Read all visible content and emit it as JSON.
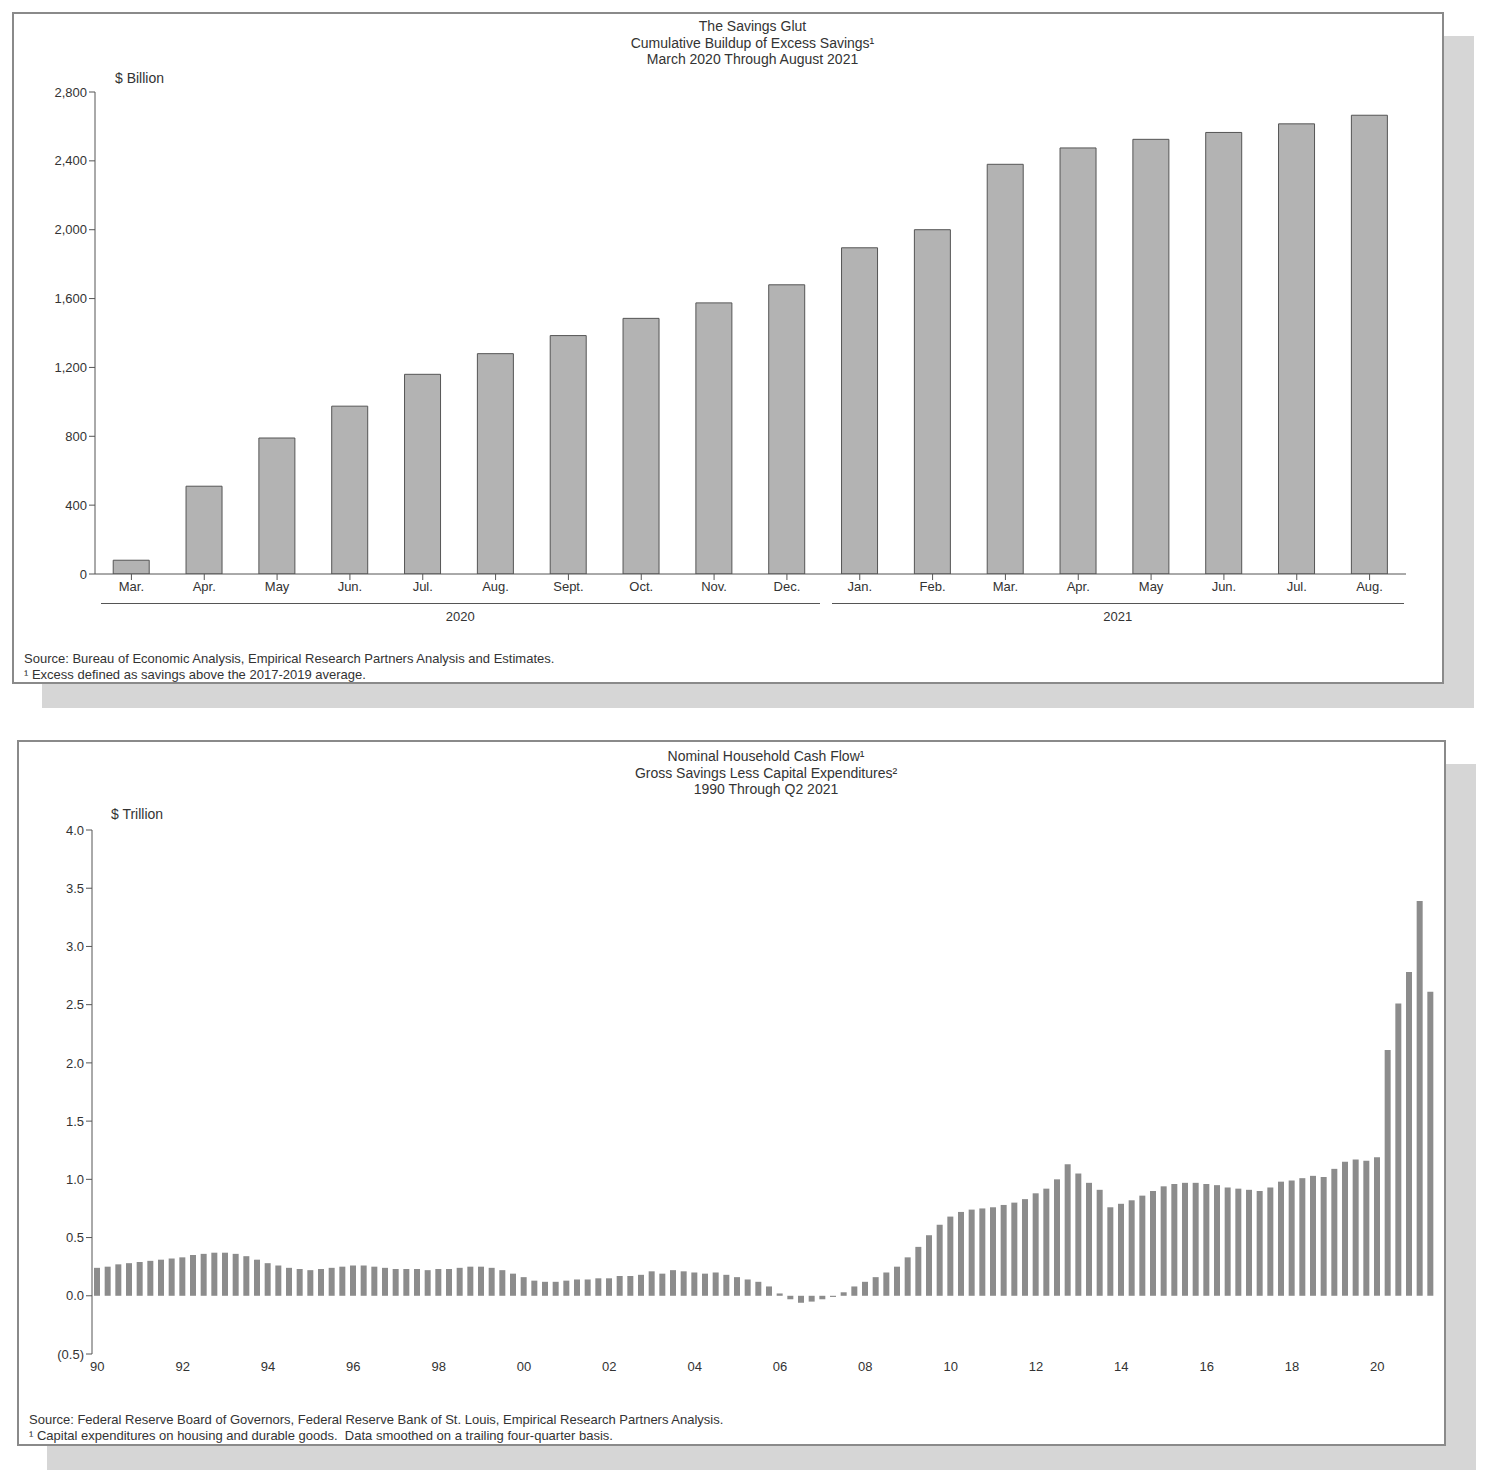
{
  "chart_data": [
    {
      "type": "bar",
      "title": "The Savings Glut",
      "subtitle": [
        "Cumulative Buildup of Excess Savings¹",
        "March 2020 Through August 2021"
      ],
      "y_label": "$ Billion",
      "categories": [
        "Mar.",
        "Apr.",
        "May",
        "Jun.",
        "Jul.",
        "Aug.",
        "Sept.",
        "Oct.",
        "Nov.",
        "Dec.",
        "Jan.",
        "Feb.",
        "Mar.",
        "Apr.",
        "May",
        "Jun.",
        "Jul.",
        "Aug."
      ],
      "values": [
        80,
        510,
        790,
        975,
        1160,
        1280,
        1385,
        1485,
        1575,
        1680,
        1895,
        2000,
        2380,
        2475,
        2525,
        2565,
        2615,
        2665
      ],
      "groups": [
        {
          "label": "2020",
          "first": 0,
          "last": 9
        },
        {
          "label": "2021",
          "first": 10,
          "last": 17
        }
      ],
      "color": "#b3b3b3",
      "ylim": [
        0,
        2800
      ],
      "yticks": [
        0,
        400,
        800,
        {
          "value": 1200,
          "label": "1,200"
        },
        {
          "value": 1600,
          "label": "1,600"
        },
        {
          "value": 2000,
          "label": "2,000"
        },
        {
          "value": 2400,
          "label": "2,400"
        },
        {
          "value": 2800,
          "label": "2,800"
        }
      ],
      "grid": false,
      "source": "Source: Bureau of Economic Analysis, Empirical Research Partners Analysis and Estimates.",
      "footnote": "¹ Excess defined as savings above the 2017-2019 average."
    },
    {
      "type": "bar",
      "title": "Nominal Household Cash Flow¹",
      "subtitle": [
        "Gross Savings Less Capital Expenditures²",
        "1990 Through Q2 2021"
      ],
      "y_label": "$ Trillion",
      "categories": [
        "90",
        null,
        null,
        null,
        null,
        null,
        null,
        null,
        "92",
        null,
        null,
        null,
        null,
        null,
        null,
        null,
        "94",
        null,
        null,
        null,
        null,
        null,
        null,
        null,
        "96",
        null,
        null,
        null,
        null,
        null,
        null,
        null,
        "98",
        null,
        null,
        null,
        null,
        null,
        null,
        null,
        "00",
        null,
        null,
        null,
        null,
        null,
        null,
        null,
        "02",
        null,
        null,
        null,
        null,
        null,
        null,
        null,
        "04",
        null,
        null,
        null,
        null,
        null,
        null,
        null,
        "06",
        null,
        null,
        null,
        null,
        null,
        null,
        null,
        "08",
        null,
        null,
        null,
        null,
        null,
        null,
        null,
        "10",
        null,
        null,
        null,
        null,
        null,
        null,
        null,
        "12",
        null,
        null,
        null,
        null,
        null,
        null,
        null,
        "14",
        null,
        null,
        null,
        null,
        null,
        null,
        null,
        "16",
        null,
        null,
        null,
        null,
        null,
        null,
        null,
        "18",
        null,
        null,
        null,
        null,
        null,
        null,
        null,
        "20",
        null,
        null,
        null,
        null,
        null
      ],
      "values": [
        0.24,
        0.25,
        0.27,
        0.28,
        0.29,
        0.3,
        0.31,
        0.32,
        0.33,
        0.35,
        0.36,
        0.37,
        0.37,
        0.36,
        0.34,
        0.31,
        0.28,
        0.26,
        0.24,
        0.23,
        0.22,
        0.23,
        0.24,
        0.25,
        0.26,
        0.26,
        0.25,
        0.24,
        0.23,
        0.23,
        0.23,
        0.22,
        0.23,
        0.23,
        0.24,
        0.25,
        0.25,
        0.24,
        0.22,
        0.19,
        0.16,
        0.13,
        0.12,
        0.12,
        0.13,
        0.14,
        0.14,
        0.15,
        0.15,
        0.17,
        0.17,
        0.18,
        0.21,
        0.19,
        0.22,
        0.21,
        0.2,
        0.19,
        0.2,
        0.18,
        0.16,
        0.14,
        0.12,
        0.08,
        0.02,
        -0.03,
        -0.06,
        -0.05,
        -0.03,
        -0.01,
        0.03,
        0.08,
        0.12,
        0.16,
        0.2,
        0.25,
        0.33,
        0.42,
        0.52,
        0.61,
        0.68,
        0.72,
        0.74,
        0.75,
        0.76,
        0.78,
        0.8,
        0.83,
        0.88,
        0.92,
        1.0,
        1.13,
        1.05,
        0.97,
        0.91,
        0.76,
        0.79,
        0.82,
        0.86,
        0.9,
        0.94,
        0.96,
        0.97,
        0.97,
        0.96,
        0.95,
        0.93,
        0.92,
        0.91,
        0.9,
        0.93,
        0.98,
        0.99,
        1.01,
        1.03,
        1.02,
        1.09,
        1.15,
        1.17,
        1.16,
        1.19,
        2.11,
        2.51,
        2.78,
        3.39,
        2.61
      ],
      "color": "#8c8c8c",
      "ylim": [
        -0.5,
        4.0
      ],
      "yticks": [
        {
          "value": -0.5,
          "label": "(0.5)"
        },
        {
          "value": 0,
          "label": "0.0"
        },
        0.5,
        {
          "value": 1.0,
          "label": "1.0"
        },
        1.5,
        {
          "value": 2.0,
          "label": "2.0"
        },
        2.5,
        {
          "value": 3.0,
          "label": "3.0"
        },
        3.5,
        {
          "value": 4.0,
          "label": "4.0"
        }
      ],
      "grid": false,
      "source": "Source: Federal Reserve Board of Governors, Federal Reserve Bank of St. Louis, Empirical Research Partners Analysis.",
      "footnote": "¹ Capital expenditures on housing and durable goods.  Data smoothed on a trailing four-quarter basis."
    }
  ]
}
